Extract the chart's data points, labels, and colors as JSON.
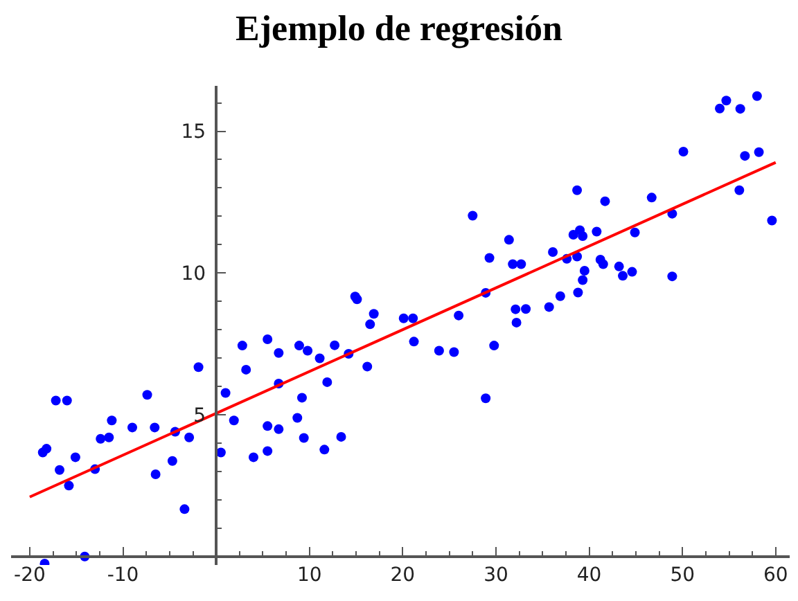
{
  "chart_data": {
    "type": "scatter",
    "title": "Ejemplo de regresión",
    "x": [
      -18.6,
      -18.2,
      -17.2,
      -16.0,
      -16.8,
      -15.8,
      -15.1,
      -13.0,
      -14.1,
      -18.4,
      -12.4,
      -11.5,
      -11.2,
      -9.0,
      -7.4,
      -6.6,
      -6.5,
      -4.7,
      -4.4,
      -3.4,
      -2.9,
      -1.9,
      0.5,
      1.0,
      1.9,
      2.8,
      3.2,
      4.0,
      5.5,
      5.5,
      5.5,
      6.7,
      6.7,
      6.7,
      8.9,
      9.2,
      8.7,
      9.4,
      9.8,
      11.1,
      11.6,
      11.9,
      12.7,
      13.4,
      14.2,
      14.9,
      15.1,
      16.2,
      16.5,
      16.9,
      20.1,
      21.1,
      21.2,
      23.9,
      25.5,
      26.0,
      27.5,
      29.3,
      28.9,
      29.8,
      28.9,
      31.4,
      31.8,
      32.7,
      32.1,
      32.2,
      33.2,
      35.7,
      36.1,
      36.9,
      37.6,
      38.7,
      38.3,
      38.7,
      39.0,
      39.3,
      39.5,
      39.3,
      38.8,
      40.8,
      41.7,
      41.2,
      41.5,
      43.2,
      43.6,
      44.6,
      44.9,
      46.7,
      48.9,
      48.9,
      50.1,
      54.0,
      54.7,
      56.2,
      58.0,
      56.1,
      56.7,
      58.2,
      59.6
    ],
    "series": [
      {
        "color": "#0000ff",
        "marker": "circle",
        "values": [
          3.67,
          3.8,
          5.5,
          5.5,
          3.05,
          2.5,
          3.5,
          3.08,
          0.0,
          -0.25,
          4.15,
          4.2,
          4.8,
          4.55,
          5.7,
          4.55,
          2.9,
          3.37,
          4.4,
          1.67,
          4.2,
          6.68,
          3.67,
          5.77,
          4.8,
          7.44,
          6.59,
          3.5,
          7.66,
          4.6,
          3.72,
          7.18,
          4.49,
          6.1,
          7.44,
          5.6,
          4.89,
          4.18,
          7.26,
          6.99,
          3.77,
          6.15,
          7.45,
          4.22,
          7.15,
          9.17,
          9.07,
          6.7,
          8.19,
          8.56,
          8.4,
          8.4,
          7.58,
          7.26,
          7.21,
          8.5,
          12.02,
          10.53,
          9.3,
          7.44,
          5.58,
          11.17,
          10.31,
          10.31,
          8.72,
          8.25,
          8.73,
          8.8,
          10.74,
          9.18,
          10.5,
          10.58,
          11.35,
          12.92,
          11.51,
          11.3,
          10.08,
          9.75,
          9.31,
          11.46,
          12.53,
          10.47,
          10.31,
          10.23,
          9.9,
          10.04,
          11.43,
          12.66,
          12.09,
          9.88,
          14.28,
          15.8,
          16.08,
          15.79,
          16.24,
          12.92,
          14.13,
          14.26,
          11.85
        ]
      },
      {
        "type": "line",
        "color": "#ff0000",
        "line_style": "solid",
        "x": [
          -20,
          60
        ],
        "values": [
          2.1,
          13.9
        ]
      }
    ],
    "xlim": [
      -22,
      61.5
    ],
    "ylim": [
      -0.3,
      16.6
    ],
    "xticks": [
      -20,
      -10,
      10,
      20,
      30,
      40,
      50,
      60,
      {
        "value": -17.5,
        "label": null
      },
      {
        "value": -15,
        "label": null
      },
      {
        "value": -12.5,
        "label": null
      },
      {
        "value": -7.5,
        "label": null
      },
      {
        "value": -5,
        "label": null
      },
      {
        "value": -2.5,
        "label": null
      },
      {
        "value": 2.5,
        "label": null
      },
      {
        "value": 5,
        "label": null
      },
      {
        "value": 7.5,
        "label": null
      },
      {
        "value": 12.5,
        "label": null
      },
      {
        "value": 15,
        "label": null
      },
      {
        "value": 17.5,
        "label": null
      },
      {
        "value": 22.5,
        "label": null
      },
      {
        "value": 25,
        "label": null
      },
      {
        "value": 27.5,
        "label": null
      },
      {
        "value": 32.5,
        "label": null
      },
      {
        "value": 35,
        "label": null
      },
      {
        "value": 37.5,
        "label": null
      },
      {
        "value": 42.5,
        "label": null
      },
      {
        "value": 45,
        "label": null
      },
      {
        "value": 47.5,
        "label": null
      },
      {
        "value": 52.5,
        "label": null
      },
      {
        "value": 55,
        "label": null
      },
      {
        "value": 57.5,
        "label": null
      }
    ],
    "yticks": [
      5,
      10,
      15,
      {
        "value": 1,
        "label": null
      },
      {
        "value": 2,
        "label": null
      },
      {
        "value": 3,
        "label": null
      },
      {
        "value": 4,
        "label": null
      },
      {
        "value": 6,
        "label": null
      },
      {
        "value": 7,
        "label": null
      },
      {
        "value": 8,
        "label": null
      },
      {
        "value": 9,
        "label": null
      },
      {
        "value": 11,
        "label": null
      },
      {
        "value": 12,
        "label": null
      },
      {
        "value": 13,
        "label": null
      },
      {
        "value": 14,
        "label": null
      },
      {
        "value": 16,
        "label": null
      }
    ],
    "legend": false
  }
}
